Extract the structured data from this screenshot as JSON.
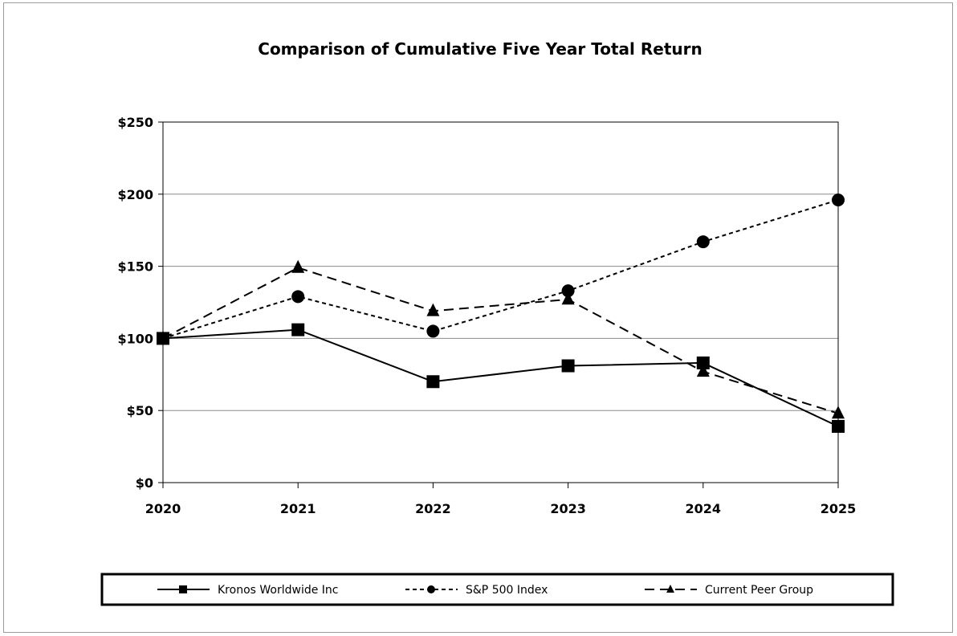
{
  "chart_data": {
    "type": "line",
    "title": "Comparison of Cumulative Five Year Total Return",
    "x": [
      "2020",
      "2021",
      "2022",
      "2023",
      "2024",
      "2025"
    ],
    "ylim": [
      0,
      250
    ],
    "yticks": [
      0,
      50,
      100,
      150,
      200,
      250
    ],
    "ytick_labels": [
      "$0",
      "$50",
      "$100",
      "$150",
      "$200",
      "$250"
    ],
    "grid": true,
    "legend_position": "bottom",
    "series": [
      {
        "name": "Kronos Worldwide Inc",
        "values": [
          100,
          106,
          70,
          81,
          83,
          39
        ],
        "marker": "square",
        "dash": "solid",
        "color": "#000000"
      },
      {
        "name": "S&P 500 Index",
        "values": [
          100,
          129,
          105,
          133,
          167,
          196
        ],
        "marker": "circle",
        "dash": "short-dash",
        "color": "#000000"
      },
      {
        "name": "Current Peer Group",
        "values": [
          100,
          149,
          119,
          127,
          77,
          48
        ],
        "marker": "triangle",
        "dash": "long-dash",
        "color": "#000000"
      }
    ]
  }
}
